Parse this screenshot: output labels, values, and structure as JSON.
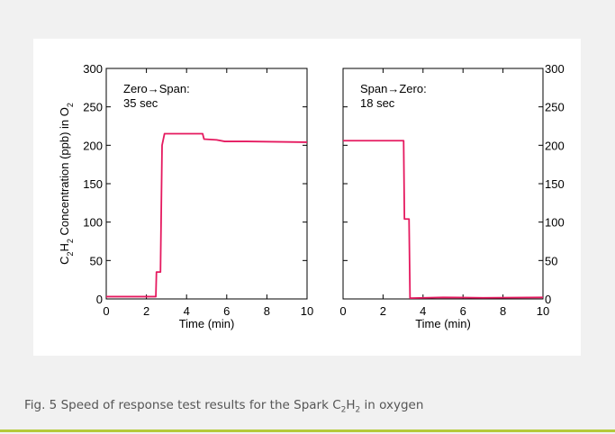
{
  "chart_data": [
    {
      "type": "line",
      "xlabel": "Time (min)",
      "ylabel": [
        {
          "text": "C"
        },
        {
          "sub": "2"
        },
        {
          "text": "H"
        },
        {
          "sub": "2"
        },
        {
          "text": " Concentration (ppb) in O"
        },
        {
          "sub": "2"
        }
      ],
      "annotation": [
        "Zero→Span:",
        "35 sec"
      ],
      "xlim": [
        0,
        10
      ],
      "ylim": [
        0,
        300
      ],
      "xticks": [
        0,
        2,
        4,
        6,
        8,
        10
      ],
      "yticks": [
        0,
        50,
        100,
        150,
        200,
        250,
        300
      ],
      "y_tick_side": "left",
      "series": [
        {
          "color": "#e5195f",
          "x": [
            0,
            2.47,
            2.5,
            2.7,
            2.78,
            2.9,
            4.8,
            4.87,
            5.5,
            5.9,
            7,
            10
          ],
          "values": [
            3,
            3,
            35,
            35,
            200,
            215,
            215,
            208,
            207,
            205,
            205,
            204
          ]
        }
      ]
    },
    {
      "type": "line",
      "xlabel": "Time (min)",
      "annotation": [
        "Span→Zero:",
        "18 sec"
      ],
      "xlim": [
        0,
        10
      ],
      "ylim": [
        0,
        300
      ],
      "xticks": [
        0,
        2,
        4,
        6,
        8,
        10
      ],
      "yticks": [
        0,
        50,
        100,
        150,
        200,
        250,
        300
      ],
      "y_tick_side": "right",
      "series": [
        {
          "color": "#e5195f",
          "x": [
            0,
            3.03,
            3.07,
            3.3,
            3.35,
            5,
            7,
            10
          ],
          "values": [
            206,
            206,
            104,
            104,
            1,
            2,
            1.5,
            2
          ]
        }
      ]
    }
  ],
  "caption": [
    {
      "text": "Fig. 5 Speed of response test results for the Spark C"
    },
    {
      "sub": "2"
    },
    {
      "text": "H"
    },
    {
      "sub": "2"
    },
    {
      "text": " in oxygen"
    }
  ]
}
